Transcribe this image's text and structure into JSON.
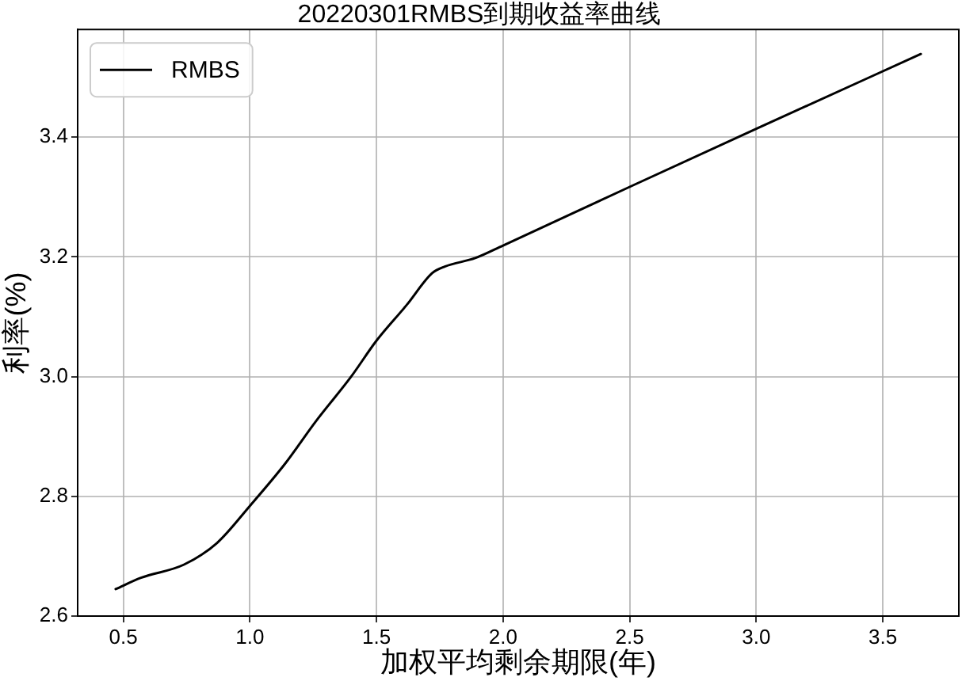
{
  "chart_data": {
    "type": "line",
    "title": "20220301RMBS到期收益率曲线",
    "xlabel": "加权平均剩余期限(年)",
    "ylabel": "利率(%)",
    "x": [
      0.47,
      0.57,
      0.74,
      0.87,
      1.0,
      1.14,
      1.26,
      1.4,
      1.5,
      1.62,
      1.72,
      1.77,
      1.89,
      2.0,
      2.5,
      3.0,
      3.65
    ],
    "series": [
      {
        "name": "RMBS",
        "color": "#000000",
        "values": [
          2.645,
          2.664,
          2.686,
          2.722,
          2.784,
          2.855,
          2.925,
          3.0,
          3.06,
          3.12,
          3.173,
          3.184,
          3.198,
          3.219,
          3.317,
          3.414,
          3.539
        ]
      }
    ],
    "xlim": [
      0.32,
      3.8
    ],
    "ylim": [
      2.6,
      3.58
    ],
    "xticks": [
      0.5,
      {
        "value": 1,
        "label": "1.0"
      },
      1.5,
      {
        "value": 2,
        "label": "2.0"
      },
      2.5,
      {
        "value": 3,
        "label": "3.0"
      },
      3.5
    ],
    "yticks": [
      2.6,
      2.8,
      {
        "value": 3,
        "label": "3.0"
      },
      3.2,
      3.4
    ],
    "grid": true,
    "legend": "top left",
    "marker": "none",
    "line_style": "solid"
  }
}
